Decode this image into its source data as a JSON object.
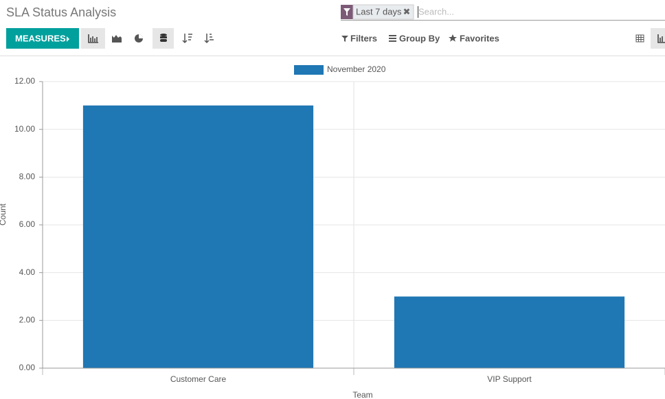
{
  "header": {
    "title": "SLA Status Analysis"
  },
  "search": {
    "facet": "Last 7 days",
    "placeholder": "Search..."
  },
  "toolbar": {
    "measures": "MEASURES",
    "filters": "Filters",
    "group_by": "Group By",
    "favorites": "Favorites"
  },
  "chart_data": {
    "type": "bar",
    "xlabel": "Team",
    "ylabel": "Count",
    "categories": [
      "Customer Care",
      "VIP Support"
    ],
    "series": [
      {
        "name": "November 2020",
        "color": "#1f77b4",
        "values": [
          11,
          3
        ]
      }
    ],
    "ylim": [
      0,
      12
    ],
    "yticks": [
      {
        "value": 0,
        "label": "0.00"
      },
      {
        "value": 2,
        "label": "2.00"
      },
      {
        "value": 4,
        "label": "4.00"
      },
      {
        "value": 6,
        "label": "6.00"
      },
      {
        "value": 8,
        "label": "8.00"
      },
      {
        "value": 10,
        "label": "10.00"
      },
      {
        "value": 12,
        "label": "12.00"
      }
    ],
    "grid": true,
    "legend": "top"
  }
}
